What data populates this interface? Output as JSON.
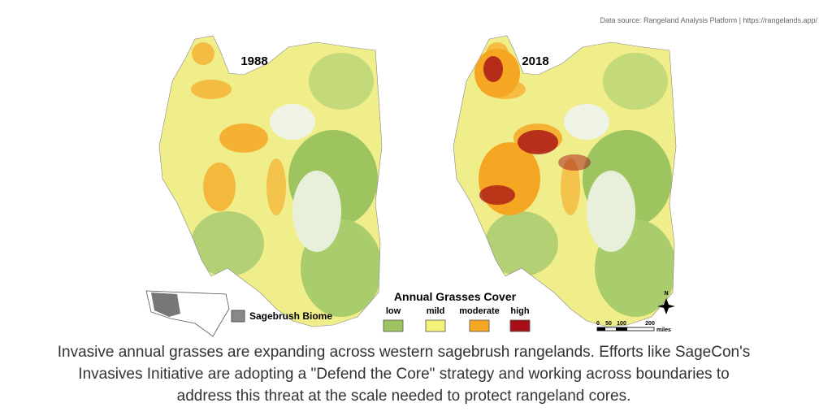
{
  "source": "Data source: Rangeland Analysis Platform | https://rangelands.app/",
  "maps": [
    {
      "year": "1988"
    },
    {
      "year": "2018"
    }
  ],
  "inset": {
    "label": "Sagebrush Biome"
  },
  "legend": {
    "title": "Annual Grasses Cover",
    "items": [
      {
        "label": "low",
        "color": "#9dc45f"
      },
      {
        "label": "mild",
        "color": "#f4f27a"
      },
      {
        "label": "moderate",
        "color": "#f5a623"
      },
      {
        "label": "high",
        "color": "#a50f15"
      }
    ]
  },
  "scale_bar": {
    "labels": [
      "0",
      "50",
      "100",
      "200"
    ],
    "unit": "miles"
  },
  "north": "N",
  "caption": [
    "Invasive annual grasses are expanding across western sagebrush rangelands. Efforts like SageCon's",
    "Invasives Initiative are adopting a \"Defend the Core\" strategy and working across boundaries to",
    "address this threat at the scale needed to protect rangeland cores."
  ]
}
